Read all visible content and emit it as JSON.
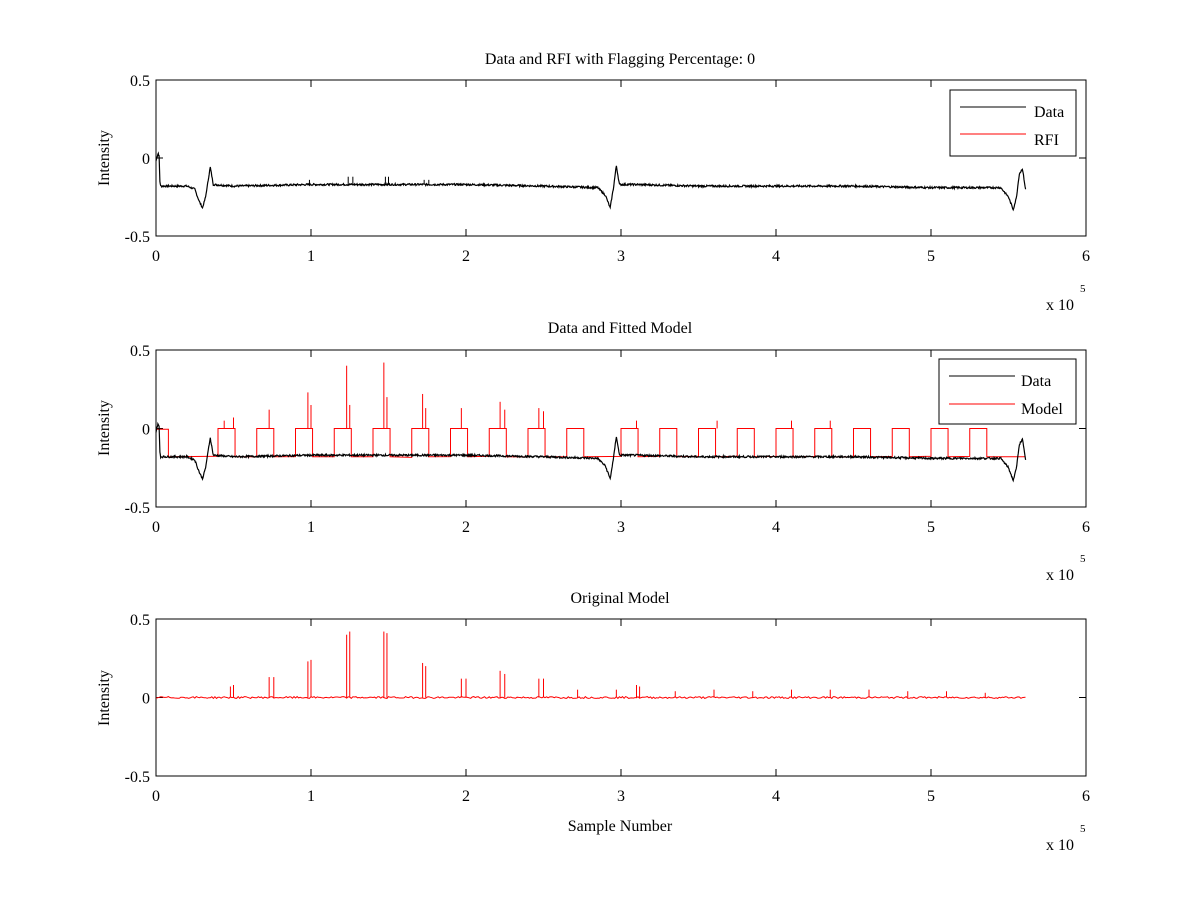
{
  "figure_colors": {
    "data": "#000000",
    "rfi": "#ff0000",
    "background": "#ffffff",
    "axes": "#000000"
  },
  "chart_data": [
    {
      "type": "line",
      "title": "Data and RFI with Flagging Percentage: 0",
      "xlabel": "",
      "ylabel": "Intensity",
      "xlim": [
        0,
        6
      ],
      "ylim": [
        -0.5,
        0.5
      ],
      "x_exponent_label": "x 10",
      "x_exponent": "5",
      "xticks": [
        "0",
        "1",
        "2",
        "3",
        "4",
        "5",
        "6"
      ],
      "yticks": [
        "-0.5",
        "0",
        "0.5"
      ],
      "legend_position": "top-right",
      "series": [
        {
          "name": "Data",
          "color": "#000000",
          "x": [
            0,
            0.01,
            0.015,
            0.02,
            0.025,
            0.03,
            0.05,
            0.1,
            0.2,
            0.25,
            0.28,
            0.3,
            0.32,
            0.34,
            0.35,
            0.37,
            0.5,
            1.0,
            1.5,
            2.0,
            2.5,
            2.85,
            2.9,
            2.93,
            2.95,
            2.97,
            2.99,
            3.1,
            3.5,
            4.0,
            4.5,
            5.0,
            5.45,
            5.5,
            5.53,
            5.55,
            5.57,
            5.59,
            5.61
          ],
          "y": [
            -0.02,
            0.02,
            0.03,
            0.01,
            -0.15,
            -0.18,
            -0.18,
            -0.18,
            -0.18,
            -0.2,
            -0.28,
            -0.32,
            -0.25,
            -0.12,
            -0.06,
            -0.17,
            -0.18,
            -0.17,
            -0.17,
            -0.17,
            -0.18,
            -0.19,
            -0.24,
            -0.32,
            -0.2,
            -0.05,
            -0.17,
            -0.17,
            -0.18,
            -0.18,
            -0.18,
            -0.19,
            -0.19,
            -0.25,
            -0.33,
            -0.26,
            -0.1,
            -0.07,
            -0.2
          ]
        },
        {
          "name": "RFI",
          "color": "#ff0000",
          "x": [],
          "y": []
        }
      ]
    },
    {
      "type": "line",
      "title": "Data and Fitted Model",
      "xlabel": "",
      "ylabel": "Intensity",
      "xlim": [
        0,
        6
      ],
      "ylim": [
        -0.5,
        0.5
      ],
      "x_exponent_label": "x 10",
      "x_exponent": "5",
      "xticks": [
        "0",
        "1",
        "2",
        "3",
        "4",
        "5",
        "6"
      ],
      "yticks": [
        "-0.5",
        "0",
        "0.5"
      ],
      "legend_position": "top-right",
      "series": [
        {
          "name": "Data",
          "color": "#000000",
          "x": [
            0,
            0.01,
            0.015,
            0.02,
            0.025,
            0.03,
            0.05,
            0.1,
            0.2,
            0.25,
            0.28,
            0.3,
            0.32,
            0.34,
            0.35,
            0.37,
            0.5,
            1.0,
            1.5,
            2.0,
            2.5,
            2.85,
            2.9,
            2.93,
            2.95,
            2.97,
            2.99,
            3.1,
            3.5,
            4.0,
            4.5,
            5.0,
            5.45,
            5.5,
            5.53,
            5.55,
            5.57,
            5.59,
            5.61
          ],
          "y": [
            -0.02,
            0.02,
            0.03,
            0.01,
            -0.15,
            -0.18,
            -0.18,
            -0.18,
            -0.18,
            -0.2,
            -0.28,
            -0.32,
            -0.25,
            -0.12,
            -0.06,
            -0.17,
            -0.18,
            -0.17,
            -0.17,
            -0.17,
            -0.18,
            -0.19,
            -0.24,
            -0.32,
            -0.2,
            -0.05,
            -0.17,
            -0.17,
            -0.18,
            -0.18,
            -0.18,
            -0.19,
            -0.19,
            -0.25,
            -0.33,
            -0.26,
            -0.1,
            -0.07,
            -0.2
          ]
        },
        {
          "name": "Model",
          "color": "#ff0000",
          "baseline": -0.18,
          "plateau": 0.0,
          "pulse_starts": [
            0.03,
            0.4,
            0.65,
            0.9,
            1.15,
            1.4,
            1.65,
            1.9,
            2.15,
            2.4,
            2.65,
            3.0,
            3.25,
            3.5,
            3.75,
            4.0,
            4.25,
            4.5,
            4.75,
            5.0,
            5.25
          ],
          "pulse_width": 0.11,
          "spikes_x": [
            0.44,
            0.5,
            0.73,
            0.98,
            1.0,
            1.23,
            1.25,
            1.47,
            1.49,
            1.72,
            1.74,
            1.97,
            2.22,
            2.25,
            2.47,
            2.5,
            3.1,
            3.62,
            4.1,
            4.35
          ],
          "spikes_y": [
            0.05,
            0.07,
            0.12,
            0.23,
            0.15,
            0.4,
            0.15,
            0.42,
            0.2,
            0.22,
            0.13,
            0.13,
            0.17,
            0.12,
            0.13,
            0.11,
            0.05,
            0.05,
            0.05,
            0.05
          ]
        }
      ]
    },
    {
      "type": "line",
      "title": "Original Model",
      "xlabel": "Sample Number",
      "ylabel": "Intensity",
      "xlim": [
        0,
        6
      ],
      "ylim": [
        -0.5,
        0.5
      ],
      "x_exponent_label": "x 10",
      "x_exponent": "5",
      "xticks": [
        "0",
        "1",
        "2",
        "3",
        "4",
        "5",
        "6"
      ],
      "yticks": [
        "-0.5",
        "0",
        "0.5"
      ],
      "series": [
        {
          "name": "",
          "color": "#ff0000",
          "x_range": [
            0,
            5.61
          ],
          "spikes_x": [
            0.48,
            0.5,
            0.73,
            0.76,
            0.98,
            1.0,
            1.23,
            1.25,
            1.47,
            1.49,
            1.72,
            1.74,
            1.97,
            2.0,
            2.22,
            2.25,
            2.47,
            2.5,
            2.72,
            2.97,
            3.1,
            3.12,
            3.35,
            3.6,
            3.85,
            4.1,
            4.35,
            4.6,
            4.85,
            5.1,
            5.35
          ],
          "spikes_y": [
            0.07,
            0.08,
            0.13,
            0.13,
            0.23,
            0.24,
            0.4,
            0.42,
            0.42,
            0.41,
            0.22,
            0.2,
            0.12,
            0.12,
            0.17,
            0.15,
            0.12,
            0.12,
            0.05,
            0.05,
            0.08,
            0.07,
            0.04,
            0.05,
            0.04,
            0.05,
            0.05,
            0.05,
            0.04,
            0.04,
            0.03
          ]
        }
      ]
    }
  ]
}
